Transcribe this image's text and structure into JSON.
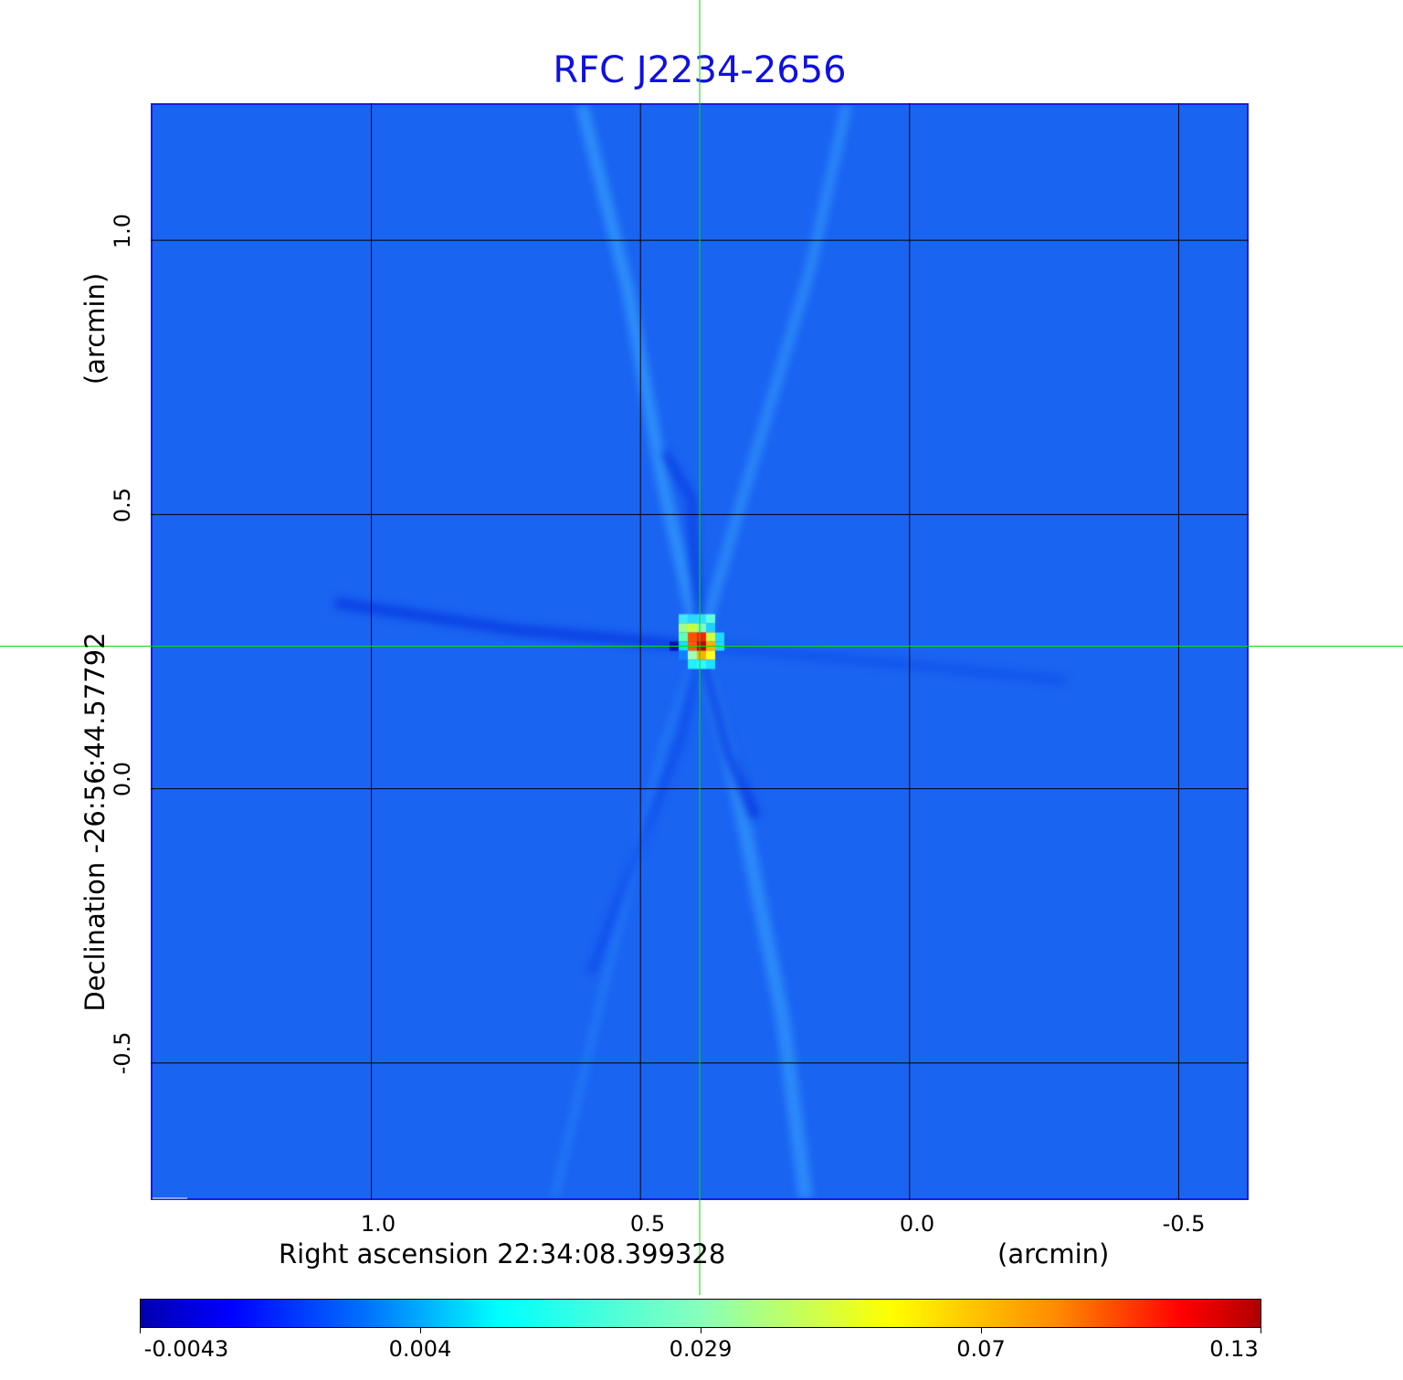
{
  "chart_data": {
    "type": "heatmap",
    "title": "RFC J2234-2656",
    "xlabel": "Right ascension  22:34:08.399328",
    "xunit": "(arcmin)",
    "ylabel": "Declination  -26:56:44.57792",
    "yunit": "(arcmin)",
    "x_ticks": [
      "1.0",
      "0.5",
      "0.0",
      "-0.5"
    ],
    "y_ticks": [
      "1.0",
      "0.5",
      "0.0",
      "-0.5"
    ],
    "xlim": [
      1.41,
      -0.63
    ],
    "ylim": [
      -0.75,
      1.25
    ],
    "grid": true,
    "colormap": "jet",
    "colorbar": {
      "ticks": [
        "-0.0043",
        "0.004",
        "0.029",
        "0.07",
        "0.13"
      ],
      "range": [
        -0.0043,
        0.13
      ],
      "placement": "bottom"
    },
    "peak": {
      "x": 0.39,
      "y": 0.26
    },
    "crosshair": {
      "x": 0.39,
      "y": 0.26,
      "color": "#00e000"
    },
    "colors": {
      "title": "#1010e0",
      "frame": "#1a1ae6",
      "grid": "#000000",
      "background": "#1a64f2"
    }
  }
}
